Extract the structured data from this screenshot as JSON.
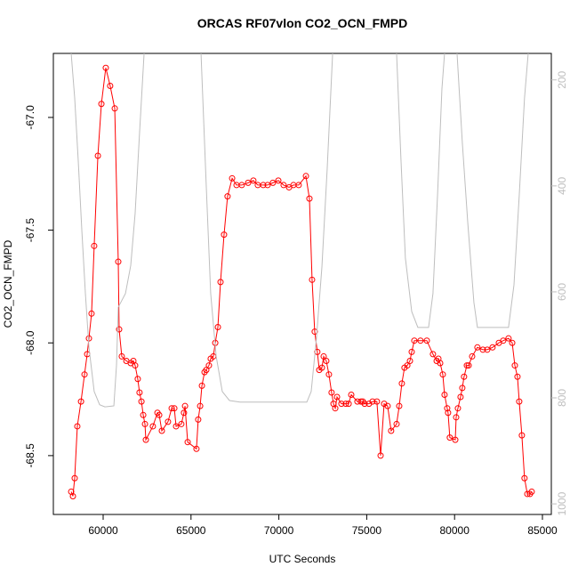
{
  "chart_data": {
    "type": "line",
    "title": "ORCAS RF07vlon CO2_OCN_FMPD",
    "xlabel": "UTC Seconds",
    "ylabel": "CO2_OCN_FMPD",
    "xlim": [
      57166,
      85506
    ],
    "ylim": [
      -68.761,
      -66.716
    ],
    "y2lim": [
      1020,
      150
    ],
    "xticks": [
      60000,
      65000,
      70000,
      75000,
      80000,
      85000
    ],
    "yticks": [
      {
        "value": -67,
        "label": "-67.0"
      },
      -67.5,
      {
        "value": -68,
        "label": "-68.0"
      },
      -68.5
    ],
    "y2ticks": [
      200,
      400,
      600,
      800,
      1000
    ],
    "series": [
      {
        "color": "#ff0000",
        "x": [
          58180,
          58280,
          58380,
          58530,
          58740,
          58940,
          59090,
          59190,
          59340,
          59490,
          59700,
          59900,
          60150,
          60400,
          60660,
          60860,
          60910,
          61060,
          61320,
          61570,
          61720,
          61820,
          61970,
          62070,
          62180,
          62280,
          62380,
          62430,
          62830,
          63090,
          63190,
          63340,
          63690,
          63900,
          64050,
          64150,
          64450,
          64600,
          64660,
          64810,
          65310,
          65410,
          65520,
          65620,
          65770,
          65870,
          66020,
          66120,
          66270,
          66380,
          66530,
          66680,
          66880,
          67080,
          67340,
          67590,
          67890,
          68250,
          68550,
          68800,
          69110,
          69360,
          69660,
          69970,
          70270,
          70580,
          70830,
          71130,
          71540,
          71740,
          71890,
          72040,
          72190,
          72300,
          72450,
          72550,
          72700,
          72850,
          73000,
          73110,
          73210,
          73310,
          73560,
          73810,
          73970,
          74120,
          74470,
          74670,
          74780,
          74880,
          75130,
          75330,
          75580,
          75790,
          75990,
          76190,
          76390,
          76700,
          76850,
          77000,
          77150,
          77310,
          77460,
          77560,
          77710,
          78060,
          78420,
          78770,
          78980,
          79080,
          79180,
          79330,
          79430,
          79580,
          79630,
          79730,
          80040,
          80090,
          80190,
          80340,
          80440,
          80540,
          80700,
          80800,
          81000,
          81300,
          81610,
          81860,
          82160,
          82520,
          82770,
          83070,
          83280,
          83430,
          83580,
          83680,
          83830,
          83980,
          84140,
          84290,
          84390
        ],
        "values": [
          -68.66,
          -68.68,
          -68.6,
          -68.37,
          -68.26,
          -68.14,
          -68.05,
          -67.98,
          -67.87,
          -67.57,
          -67.17,
          -66.94,
          -66.78,
          -66.86,
          -66.96,
          -67.64,
          -67.94,
          -68.06,
          -68.08,
          -68.09,
          -68.08,
          -68.1,
          -68.16,
          -68.22,
          -68.26,
          -68.32,
          -68.36,
          -68.43,
          -68.37,
          -68.31,
          -68.32,
          -68.39,
          -68.35,
          -68.29,
          -68.29,
          -68.37,
          -68.36,
          -68.31,
          -68.28,
          -68.44,
          -68.47,
          -68.34,
          -68.28,
          -68.19,
          -68.13,
          -68.12,
          -68.1,
          -68.07,
          -68.06,
          -68.0,
          -67.93,
          -67.73,
          -67.52,
          -67.35,
          -67.27,
          -67.3,
          -67.3,
          -67.29,
          -67.28,
          -67.3,
          -67.3,
          -67.3,
          -67.29,
          -67.28,
          -67.3,
          -67.31,
          -67.3,
          -67.3,
          -67.26,
          -67.36,
          -67.72,
          -67.95,
          -68.04,
          -68.12,
          -68.11,
          -68.06,
          -68.08,
          -68.14,
          -68.22,
          -68.27,
          -68.29,
          -68.24,
          -68.27,
          -68.27,
          -68.27,
          -68.23,
          -68.26,
          -68.26,
          -68.26,
          -68.27,
          -68.27,
          -68.26,
          -68.26,
          -68.5,
          -68.27,
          -68.28,
          -68.39,
          -68.36,
          -68.28,
          -68.18,
          -68.11,
          -68.1,
          -68.08,
          -68.04,
          -67.99,
          -67.99,
          -67.99,
          -68.05,
          -68.08,
          -68.07,
          -68.09,
          -68.14,
          -68.23,
          -68.29,
          -68.31,
          -68.42,
          -68.43,
          -68.33,
          -68.29,
          -68.24,
          -68.2,
          -68.15,
          -68.1,
          -68.1,
          -68.06,
          -68.02,
          -68.03,
          -68.03,
          -68.02,
          -68.0,
          -67.99,
          -67.98,
          -68.0,
          -68.1,
          -68.15,
          -68.26,
          -68.41,
          -68.6,
          -68.67,
          -68.67,
          -68.66
        ]
      },
      {
        "color": "#bebebe",
        "axis": "y2",
        "x": [
          58180,
          58380,
          58580,
          58790,
          58990,
          59190,
          59490,
          59800,
          60100,
          60610,
          60760,
          60860,
          61270,
          61570,
          61820,
          62070,
          62330,
          null,
          65570,
          65870,
          66120,
          66430,
          66780,
          67190,
          67790,
          71590,
          71840,
          72140,
          72450,
          72750,
          73060,
          null,
          76700,
          76950,
          77200,
          77560,
          77910,
          78520,
          78770,
          79030,
          79280,
          79430,
          null,
          80140,
          80440,
          80750,
          81100,
          81300,
          83070,
          83380,
          83680,
          83980,
          84190
        ],
        "values": [
          150,
          234,
          351,
          486,
          603,
          704,
          788,
          813,
          817,
          815,
          738,
          629,
          603,
          550,
          452,
          301,
          150,
          null,
          150,
          402,
          603,
          721,
          788,
          805,
          808,
          808,
          788,
          687,
          553,
          368,
          150,
          null,
          150,
          351,
          536,
          637,
          667,
          667,
          603,
          418,
          217,
          150,
          null,
          150,
          318,
          469,
          620,
          667,
          667,
          587,
          418,
          234,
          150
        ]
      }
    ]
  }
}
